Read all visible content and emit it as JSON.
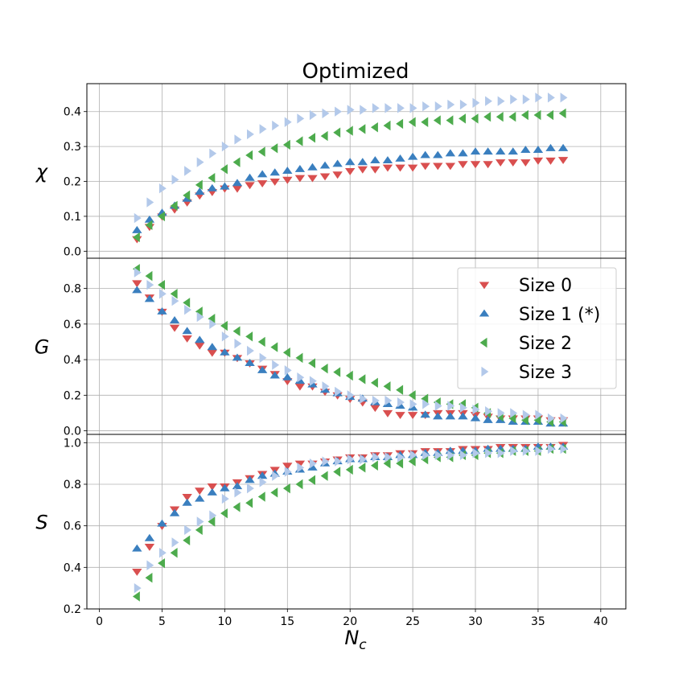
{
  "chart_data": {
    "type": "scatter",
    "title": "Optimized",
    "xlabel": "N",
    "xlabel_subscript": "c",
    "xlim": [
      -1,
      42
    ],
    "xticks": [
      0,
      5,
      10,
      15,
      20,
      25,
      30,
      35,
      40
    ],
    "grid": true,
    "legend": {
      "placement": "middle panel, right",
      "entries": [
        "Size 0",
        "Size 1 (*)",
        "Size 2",
        "Size 3"
      ]
    },
    "series_styles": [
      {
        "name": "Size 0",
        "marker": "triangle-down",
        "color": "#d94f4f"
      },
      {
        "name": "Size 1 (*)",
        "marker": "triangle-up",
        "color": "#3a7fbf"
      },
      {
        "name": "Size 2",
        "marker": "triangle-left",
        "color": "#4dab4d"
      },
      {
        "name": "Size 3",
        "marker": "triangle-right",
        "color": "#b3c9ea"
      }
    ],
    "x": [
      3,
      4,
      5,
      6,
      7,
      8,
      9,
      10,
      11,
      12,
      13,
      14,
      15,
      16,
      17,
      18,
      19,
      20,
      21,
      22,
      23,
      24,
      25,
      26,
      27,
      28,
      29,
      30,
      31,
      32,
      33,
      34,
      35,
      36,
      37
    ],
    "panels": [
      {
        "ylabel": "χ",
        "ylim": [
          -0.02,
          0.48
        ],
        "yticks": [
          0.0,
          0.1,
          0.2,
          0.3,
          0.4
        ],
        "ytick_labels": [
          "0.0",
          "0.1",
          "0.2",
          "0.3",
          "0.4"
        ],
        "series": [
          {
            "name": "Size 0",
            "values": [
              0.035,
              0.07,
              0.1,
              0.12,
              0.14,
              0.16,
              0.17,
              0.18,
              0.18,
              0.19,
              0.195,
              0.2,
              0.205,
              0.21,
              0.21,
              0.215,
              0.22,
              0.23,
              0.235,
              0.235,
              0.24,
              0.24,
              0.24,
              0.245,
              0.245,
              0.245,
              0.25,
              0.25,
              0.25,
              0.255,
              0.255,
              0.255,
              0.26,
              0.26,
              0.262
            ]
          },
          {
            "name": "Size 1 (*)",
            "values": [
              0.06,
              0.09,
              0.11,
              0.13,
              0.15,
              0.17,
              0.18,
              0.185,
              0.195,
              0.21,
              0.22,
              0.225,
              0.23,
              0.235,
              0.24,
              0.245,
              0.25,
              0.255,
              0.255,
              0.26,
              0.26,
              0.265,
              0.27,
              0.275,
              0.275,
              0.28,
              0.28,
              0.285,
              0.285,
              0.285,
              0.285,
              0.29,
              0.29,
              0.295,
              0.295
            ]
          },
          {
            "name": "Size 2",
            "values": [
              0.04,
              0.075,
              0.1,
              0.13,
              0.16,
              0.19,
              0.21,
              0.235,
              0.255,
              0.275,
              0.285,
              0.295,
              0.305,
              0.315,
              0.325,
              0.33,
              0.34,
              0.345,
              0.35,
              0.355,
              0.36,
              0.365,
              0.37,
              0.37,
              0.375,
              0.375,
              0.38,
              0.38,
              0.385,
              0.385,
              0.385,
              0.39,
              0.39,
              0.39,
              0.395
            ]
          },
          {
            "name": "Size 3",
            "values": [
              0.095,
              0.14,
              0.18,
              0.205,
              0.23,
              0.255,
              0.28,
              0.3,
              0.32,
              0.335,
              0.35,
              0.36,
              0.37,
              0.38,
              0.39,
              0.395,
              0.4,
              0.405,
              0.405,
              0.41,
              0.41,
              0.41,
              0.41,
              0.415,
              0.415,
              0.42,
              0.42,
              0.425,
              0.43,
              0.43,
              0.435,
              0.435,
              0.44,
              0.44,
              0.44
            ]
          }
        ]
      },
      {
        "ylabel": "G",
        "ylim": [
          -0.02,
          0.97
        ],
        "yticks": [
          0.0,
          0.2,
          0.4,
          0.6,
          0.8
        ],
        "ytick_labels": [
          "0.0",
          "0.2",
          "0.4",
          "0.6",
          "0.8"
        ],
        "series": [
          {
            "name": "Size 0",
            "values": [
              0.83,
              0.75,
              0.67,
              0.58,
              0.52,
              0.48,
              0.44,
              0.44,
              0.41,
              0.38,
              0.35,
              0.32,
              0.28,
              0.25,
              0.25,
              0.22,
              0.2,
              0.18,
              0.16,
              0.13,
              0.1,
              0.09,
              0.09,
              0.09,
              0.1,
              0.1,
              0.1,
              0.09,
              0.08,
              0.07,
              0.07,
              0.07,
              0.07,
              0.06,
              0.06
            ]
          },
          {
            "name": "Size 1 (*)",
            "values": [
              0.79,
              0.74,
              0.67,
              0.62,
              0.56,
              0.51,
              0.47,
              0.44,
              0.41,
              0.38,
              0.34,
              0.31,
              0.3,
              0.28,
              0.26,
              0.23,
              0.21,
              0.19,
              0.18,
              0.16,
              0.15,
              0.14,
              0.13,
              0.09,
              0.08,
              0.08,
              0.08,
              0.07,
              0.06,
              0.06,
              0.05,
              0.05,
              0.05,
              0.04,
              0.04
            ]
          },
          {
            "name": "Size 2",
            "values": [
              0.91,
              0.87,
              0.82,
              0.77,
              0.72,
              0.67,
              0.63,
              0.59,
              0.56,
              0.53,
              0.5,
              0.47,
              0.44,
              0.41,
              0.38,
              0.35,
              0.33,
              0.31,
              0.29,
              0.27,
              0.25,
              0.23,
              0.2,
              0.18,
              0.16,
              0.15,
              0.15,
              0.13,
              0.1,
              0.08,
              0.07,
              0.06,
              0.06,
              0.05,
              0.05
            ]
          },
          {
            "name": "Size 3",
            "values": [
              0.89,
              0.82,
              0.77,
              0.73,
              0.68,
              0.64,
              0.6,
              0.53,
              0.49,
              0.45,
              0.41,
              0.37,
              0.34,
              0.3,
              0.28,
              0.25,
              0.22,
              0.2,
              0.18,
              0.17,
              0.17,
              0.16,
              0.15,
              0.15,
              0.14,
              0.14,
              0.13,
              0.12,
              0.11,
              0.1,
              0.1,
              0.09,
              0.09,
              0.07,
              0.07
            ]
          }
        ]
      },
      {
        "ylabel": "S",
        "ylim": [
          0.2,
          1.04
        ],
        "yticks": [
          0.2,
          0.4,
          0.6,
          0.8,
          1.0
        ],
        "ytick_labels": [
          "0.2",
          "0.4",
          "0.6",
          "0.8",
          "1.0"
        ],
        "series": [
          {
            "name": "Size 0",
            "values": [
              0.38,
              0.5,
              0.6,
              0.68,
              0.74,
              0.77,
              0.79,
              0.79,
              0.81,
              0.83,
              0.85,
              0.87,
              0.89,
              0.9,
              0.9,
              0.91,
              0.92,
              0.93,
              0.93,
              0.94,
              0.94,
              0.95,
              0.95,
              0.96,
              0.96,
              0.96,
              0.97,
              0.97,
              0.97,
              0.98,
              0.98,
              0.98,
              0.98,
              0.98,
              0.99
            ]
          },
          {
            "name": "Size 1 (*)",
            "values": [
              0.49,
              0.54,
              0.61,
              0.66,
              0.71,
              0.73,
              0.76,
              0.78,
              0.79,
              0.82,
              0.84,
              0.85,
              0.86,
              0.87,
              0.88,
              0.9,
              0.91,
              0.92,
              0.92,
              0.93,
              0.93,
              0.94,
              0.94,
              0.95,
              0.95,
              0.96,
              0.96,
              0.96,
              0.97,
              0.97,
              0.97,
              0.97,
              0.98,
              0.98,
              0.98
            ]
          },
          {
            "name": "Size 2",
            "values": [
              0.26,
              0.35,
              0.42,
              0.47,
              0.53,
              0.58,
              0.62,
              0.66,
              0.69,
              0.71,
              0.74,
              0.76,
              0.78,
              0.8,
              0.82,
              0.84,
              0.86,
              0.87,
              0.88,
              0.89,
              0.9,
              0.9,
              0.91,
              0.92,
              0.93,
              0.93,
              0.94,
              0.94,
              0.95,
              0.95,
              0.96,
              0.96,
              0.96,
              0.97,
              0.97
            ]
          },
          {
            "name": "Size 3",
            "values": [
              0.3,
              0.41,
              0.47,
              0.52,
              0.58,
              0.62,
              0.65,
              0.73,
              0.76,
              0.78,
              0.81,
              0.84,
              0.86,
              0.88,
              0.9,
              0.91,
              0.91,
              0.92,
              0.92,
              0.93,
              0.93,
              0.93,
              0.94,
              0.94,
              0.94,
              0.94,
              0.94,
              0.95,
              0.95,
              0.95,
              0.96,
              0.96,
              0.96,
              0.97,
              0.97
            ]
          }
        ]
      }
    ]
  }
}
